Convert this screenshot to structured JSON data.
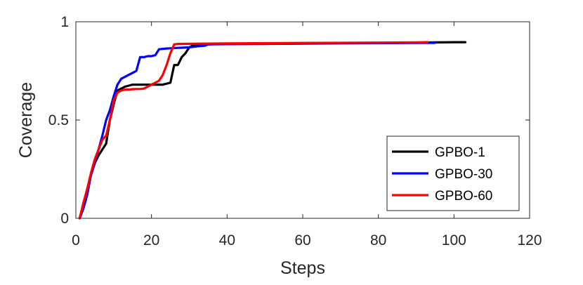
{
  "chart_data": {
    "type": "line",
    "xlabel": "Steps",
    "ylabel": "Coverage",
    "xlim": [
      0,
      120
    ],
    "ylim": [
      0,
      1
    ],
    "xticks": [
      0,
      20,
      40,
      60,
      80,
      100,
      120
    ],
    "yticks": [
      0,
      0.5,
      1
    ],
    "ytick_labels": [
      "0",
      "0.5",
      "1"
    ],
    "grid": false,
    "legend_position": "lower-right",
    "series": [
      {
        "name": "GPBO-1",
        "color": "#000000",
        "x": [
          1,
          2,
          3,
          4,
          5,
          6,
          7,
          8,
          9,
          10,
          11,
          12,
          13,
          14,
          15,
          16,
          17,
          18,
          19,
          20,
          21,
          22,
          23,
          24,
          25,
          26,
          27,
          28,
          29,
          30,
          31,
          35,
          40,
          50,
          60,
          70,
          80,
          90,
          95,
          100,
          103
        ],
        "y": [
          0.0,
          0.07,
          0.15,
          0.22,
          0.28,
          0.32,
          0.35,
          0.38,
          0.5,
          0.58,
          0.65,
          0.66,
          0.67,
          0.675,
          0.68,
          0.68,
          0.68,
          0.68,
          0.68,
          0.68,
          0.68,
          0.68,
          0.68,
          0.685,
          0.69,
          0.78,
          0.78,
          0.82,
          0.84,
          0.87,
          0.88,
          0.885,
          0.888,
          0.89,
          0.891,
          0.892,
          0.893,
          0.894,
          0.895,
          0.896,
          0.896
        ]
      },
      {
        "name": "GPBO-30",
        "color": "#0000ff",
        "x": [
          1,
          2,
          3,
          4,
          5,
          6,
          7,
          8,
          9,
          10,
          11,
          12,
          13,
          14,
          15,
          16,
          17,
          18,
          19,
          20,
          21,
          22,
          23,
          24,
          25,
          26,
          27,
          28,
          29,
          30,
          31,
          32,
          33,
          34,
          35,
          40,
          50,
          60,
          70,
          80,
          90,
          95
        ],
        "y": [
          0.0,
          0.05,
          0.12,
          0.22,
          0.28,
          0.35,
          0.42,
          0.5,
          0.55,
          0.62,
          0.68,
          0.71,
          0.72,
          0.73,
          0.74,
          0.75,
          0.82,
          0.82,
          0.825,
          0.825,
          0.83,
          0.86,
          0.862,
          0.864,
          0.865,
          0.866,
          0.867,
          0.868,
          0.869,
          0.87,
          0.872,
          0.875,
          0.876,
          0.878,
          0.885,
          0.886,
          0.887,
          0.889,
          0.89,
          0.891,
          0.892,
          0.893
        ]
      },
      {
        "name": "GPBO-60",
        "color": "#ff0000",
        "x": [
          1,
          2,
          3,
          4,
          5,
          6,
          7,
          8,
          9,
          10,
          11,
          12,
          13,
          14,
          15,
          16,
          17,
          18,
          19,
          20,
          21,
          22,
          23,
          24,
          25,
          26,
          27,
          30,
          35,
          40,
          50,
          60,
          70,
          80,
          90,
          93
        ],
        "y": [
          0.0,
          0.08,
          0.15,
          0.23,
          0.3,
          0.35,
          0.4,
          0.42,
          0.5,
          0.6,
          0.64,
          0.65,
          0.655,
          0.655,
          0.657,
          0.658,
          0.658,
          0.66,
          0.67,
          0.68,
          0.69,
          0.7,
          0.73,
          0.78,
          0.84,
          0.885,
          0.887,
          0.888,
          0.889,
          0.89,
          0.891,
          0.892,
          0.893,
          0.894,
          0.895,
          0.896
        ]
      }
    ]
  }
}
